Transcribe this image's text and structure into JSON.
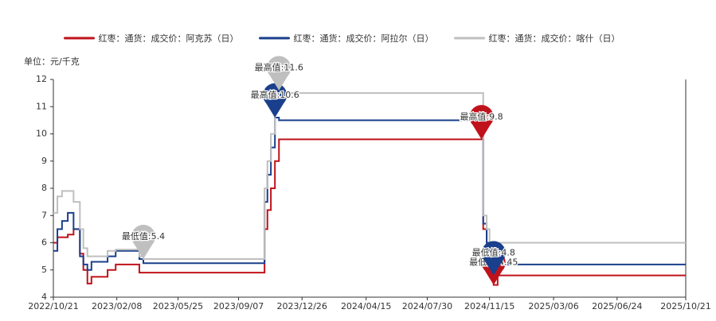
{
  "chart_data": {
    "type": "line",
    "step": true,
    "unit_label": "单位：元/千克",
    "x": [
      "2022/10/21",
      "2022/10/28",
      "2022/11/05",
      "2022/11/15",
      "2022/11/25",
      "2022/12/06",
      "2022/12/12",
      "2022/12/19",
      "2022/12/26",
      "2023/01/05",
      "2023/01/23",
      "2023/02/06",
      "2023/02/15",
      "2023/03/19",
      "2023/03/26",
      "2023/10/22",
      "2023/10/27",
      "2023/11/02",
      "2023/11/09",
      "2023/11/16",
      "2023/11/23",
      "2023/11/29",
      "2024/11/01",
      "2024/11/04",
      "2024/11/10",
      "2024/11/15",
      "2024/11/22",
      "2024/11/29",
      "2024/12/06",
      "2025/10/21"
    ],
    "series": [
      {
        "name": "红枣：通货：成交价：阿克苏（日）",
        "color": "#c0121b",
        "max_label": "最高值:9.8",
        "min_label": "最低值:4.45",
        "values": [
          6.0,
          6.2,
          6.2,
          6.3,
          6.5,
          5.6,
          5.0,
          4.5,
          4.75,
          4.75,
          5.0,
          5.2,
          5.2,
          4.9,
          4.9,
          6.5,
          7.2,
          8.0,
          9.0,
          9.8,
          9.8,
          9.8,
          9.8,
          6.5,
          6.0,
          5.0,
          4.45,
          4.8,
          4.8,
          4.8
        ]
      },
      {
        "name": "红枣：通货：成交价：阿拉尔（日）",
        "color": "#1a3f8c",
        "max_label": "最高值:10.6",
        "min_label": "最低值:4.8",
        "values": [
          5.7,
          6.5,
          6.8,
          7.1,
          6.5,
          5.5,
          5.2,
          5.0,
          5.3,
          5.3,
          5.5,
          5.7,
          5.7,
          5.4,
          5.25,
          7.5,
          8.5,
          9.5,
          10.6,
          10.5,
          10.5,
          10.5,
          10.5,
          6.7,
          6.0,
          5.3,
          4.8,
          5.2,
          5.2,
          5.2
        ]
      },
      {
        "name": "红枣：通货：成交价：喀什（日）",
        "color": "#bfbfbf",
        "max_label": "最高值:11.6",
        "min_label": "最低值:5.4",
        "values": [
          7.1,
          7.7,
          7.9,
          7.9,
          7.5,
          6.5,
          5.8,
          5.5,
          5.5,
          5.5,
          5.7,
          5.75,
          5.75,
          5.5,
          5.4,
          8.0,
          9.0,
          10.0,
          11.0,
          11.6,
          11.5,
          11.5,
          11.5,
          7.0,
          6.5,
          6.0,
          6.0,
          6.0,
          6.0,
          6.0
        ]
      }
    ],
    "xlim": [
      "2022/10/21",
      "2025/10/21"
    ],
    "xticks": [
      "2022/10/21",
      "2023/02/08",
      "2023/05/25",
      "2023/09/07",
      "2023/12/26",
      "2024/04/15",
      "2024/07/30",
      "2024/11/15",
      "2025/03/06",
      "2025/06/24",
      "2025/10/21"
    ],
    "ylim": [
      4,
      12
    ],
    "yticks": [
      4,
      5,
      6,
      7,
      8,
      9,
      10,
      11,
      12
    ]
  }
}
